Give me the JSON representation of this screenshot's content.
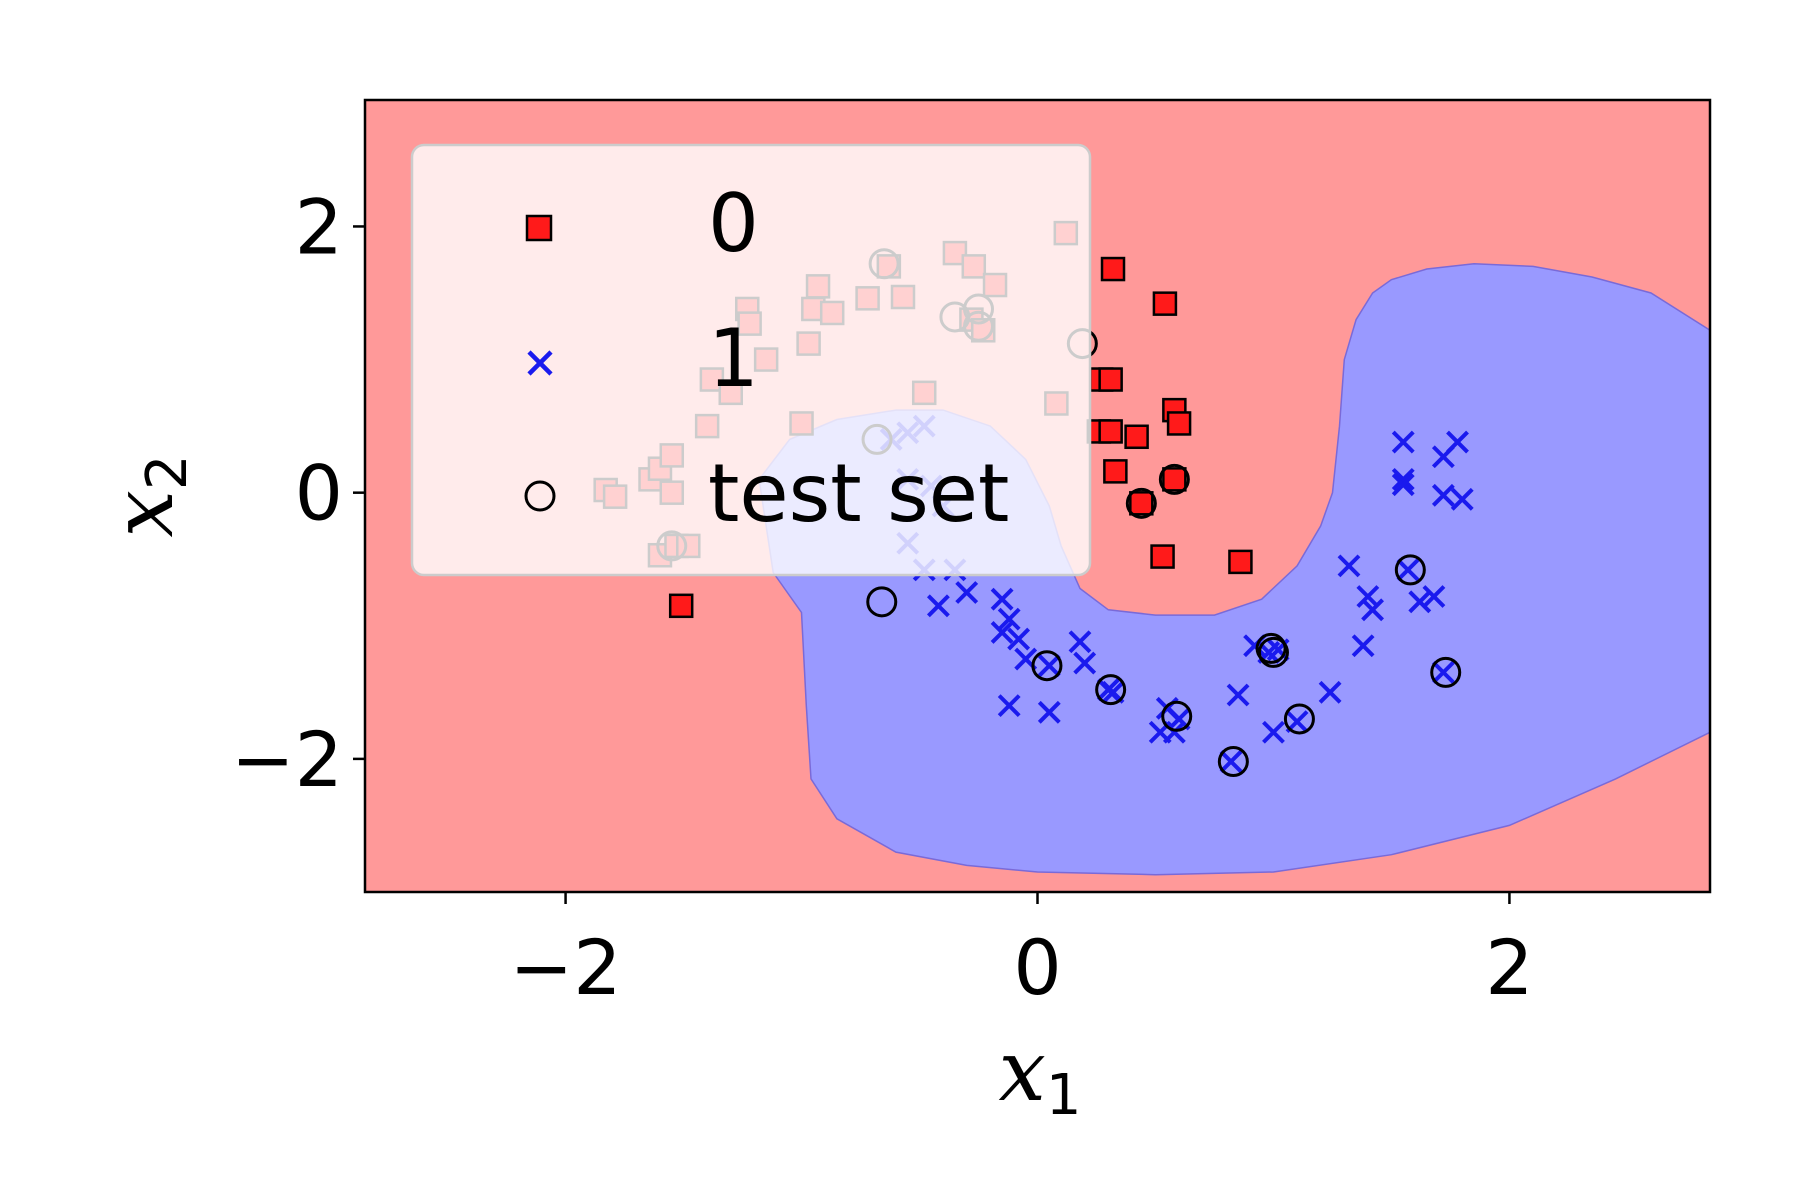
{
  "chart_data": {
    "type": "scatter",
    "title": "",
    "xlabel": "x",
    "xlabel_subscript": "1",
    "ylabel": "x",
    "ylabel_subscript": "2",
    "xlim": [
      -2.85,
      2.85
    ],
    "ylim": [
      -3.0,
      2.95
    ],
    "x_ticks": [
      -2,
      0,
      2
    ],
    "y_ticks": [
      -2,
      0,
      2
    ],
    "x_tick_labels": [
      "−2",
      "0",
      "2"
    ],
    "y_tick_labels": [
      "−2",
      "0",
      "2"
    ],
    "grid": false,
    "legend_position": "top-left",
    "colors": {
      "class0_region": "#ff9999",
      "class1_region": "#9999ff",
      "class0_marker": "#ff1a1a",
      "class1_marker": "#1a1aee",
      "test_marker": "#000000"
    },
    "decision_region_class1_boundary": [
      [
        -1.18,
        0.1
      ],
      [
        -1.12,
        -0.6
      ],
      [
        -1.0,
        -0.9
      ],
      [
        -0.98,
        -1.6
      ],
      [
        -0.96,
        -2.15
      ],
      [
        -0.85,
        -2.45
      ],
      [
        -0.6,
        -2.7
      ],
      [
        -0.3,
        -2.8
      ],
      [
        0.0,
        -2.85
      ],
      [
        0.5,
        -2.87
      ],
      [
        1.0,
        -2.85
      ],
      [
        1.5,
        -2.72
      ],
      [
        2.0,
        -2.5
      ],
      [
        2.45,
        -2.15
      ],
      [
        2.85,
        -1.8
      ],
      [
        2.85,
        1.22
      ],
      [
        2.6,
        1.5
      ],
      [
        2.35,
        1.62
      ],
      [
        2.1,
        1.7
      ],
      [
        1.85,
        1.72
      ],
      [
        1.65,
        1.68
      ],
      [
        1.5,
        1.6
      ],
      [
        1.42,
        1.5
      ],
      [
        1.35,
        1.3
      ],
      [
        1.3,
        1.0
      ],
      [
        1.28,
        0.5
      ],
      [
        1.25,
        0.0
      ],
      [
        1.2,
        -0.25
      ],
      [
        1.1,
        -0.55
      ],
      [
        0.95,
        -0.8
      ],
      [
        0.75,
        -0.92
      ],
      [
        0.5,
        -0.92
      ],
      [
        0.3,
        -0.88
      ],
      [
        0.18,
        -0.72
      ],
      [
        0.1,
        -0.4
      ],
      [
        0.05,
        -0.1
      ],
      [
        -0.05,
        0.25
      ],
      [
        -0.2,
        0.5
      ],
      [
        -0.4,
        0.62
      ],
      [
        -0.6,
        0.62
      ],
      [
        -0.85,
        0.55
      ],
      [
        -1.05,
        0.4
      ]
    ],
    "series": [
      {
        "name": "0",
        "marker": "square",
        "points": [
          [
            -1.83,
            0.02
          ],
          [
            -1.79,
            -0.03
          ],
          [
            -1.64,
            0.1
          ],
          [
            -1.6,
            0.18
          ],
          [
            -1.55,
            0.28
          ],
          [
            -1.55,
            0.0
          ],
          [
            -1.6,
            -0.47
          ],
          [
            -1.53,
            -0.4
          ],
          [
            -1.48,
            -0.4
          ],
          [
            -1.51,
            -0.85
          ],
          [
            -1.4,
            0.5
          ],
          [
            -1.38,
            0.85
          ],
          [
            -1.3,
            0.75
          ],
          [
            -1.23,
            1.38
          ],
          [
            -1.22,
            1.27
          ],
          [
            -1.15,
            1.0
          ],
          [
            -1.0,
            0.52
          ],
          [
            -0.97,
            1.12
          ],
          [
            -0.95,
            1.38
          ],
          [
            -0.93,
            1.55
          ],
          [
            -0.87,
            1.35
          ],
          [
            -0.72,
            1.46
          ],
          [
            -0.63,
            1.7
          ],
          [
            -0.57,
            1.47
          ],
          [
            -0.48,
            0.75
          ],
          [
            -0.35,
            1.8
          ],
          [
            -0.27,
            1.7
          ],
          [
            -0.18,
            1.56
          ],
          [
            -0.28,
            1.3
          ],
          [
            -0.23,
            1.22
          ],
          [
            0.08,
            0.67
          ],
          [
            0.12,
            1.95
          ],
          [
            0.27,
            0.85
          ],
          [
            0.31,
            0.85
          ],
          [
            0.26,
            0.46
          ],
          [
            0.31,
            0.46
          ],
          [
            0.33,
            0.16
          ],
          [
            0.32,
            1.68
          ],
          [
            0.42,
            0.42
          ],
          [
            0.53,
            -0.48
          ],
          [
            0.54,
            1.42
          ],
          [
            0.58,
            0.62
          ],
          [
            0.6,
            0.52
          ],
          [
            0.58,
            0.1
          ],
          [
            0.86,
            -0.52
          ],
          [
            0.44,
            -0.08
          ]
        ]
      },
      {
        "name": "1",
        "marker": "x",
        "points": [
          [
            -0.62,
            0.4
          ],
          [
            -0.55,
            0.45
          ],
          [
            -0.48,
            0.5
          ],
          [
            -0.55,
            0.1
          ],
          [
            -0.45,
            0.05
          ],
          [
            -0.4,
            -0.1
          ],
          [
            -0.55,
            -0.38
          ],
          [
            -0.48,
            -0.58
          ],
          [
            -0.35,
            -0.58
          ],
          [
            -0.42,
            -0.85
          ],
          [
            -0.3,
            -0.75
          ],
          [
            -0.15,
            -0.8
          ],
          [
            -0.12,
            -0.95
          ],
          [
            -0.15,
            -1.05
          ],
          [
            -0.08,
            -1.1
          ],
          [
            -0.05,
            -1.25
          ],
          [
            0.05,
            -1.3
          ],
          [
            0.18,
            -1.12
          ],
          [
            0.2,
            -1.28
          ],
          [
            0.3,
            -1.48
          ],
          [
            0.32,
            -1.5
          ],
          [
            -0.12,
            -1.6
          ],
          [
            0.05,
            -1.65
          ],
          [
            0.55,
            -1.62
          ],
          [
            0.52,
            -1.8
          ],
          [
            0.58,
            -1.8
          ],
          [
            0.6,
            -1.7
          ],
          [
            0.82,
            -2.02
          ],
          [
            0.85,
            -1.52
          ],
          [
            0.92,
            -1.15
          ],
          [
            0.98,
            -1.2
          ],
          [
            1.02,
            -1.18
          ],
          [
            1.0,
            -1.8
          ],
          [
            1.1,
            -1.72
          ],
          [
            1.24,
            -1.5
          ],
          [
            1.32,
            -0.55
          ],
          [
            1.4,
            -0.78
          ],
          [
            1.42,
            -0.88
          ],
          [
            1.38,
            -1.15
          ],
          [
            1.55,
            0.38
          ],
          [
            1.55,
            0.1
          ],
          [
            1.55,
            0.06
          ],
          [
            1.57,
            -0.58
          ],
          [
            1.62,
            -0.82
          ],
          [
            1.68,
            -0.78
          ],
          [
            1.72,
            0.27
          ],
          [
            1.78,
            0.38
          ],
          [
            1.72,
            -0.02
          ],
          [
            1.8,
            -0.05
          ],
          [
            1.72,
            -1.35
          ]
        ]
      },
      {
        "name": "test set",
        "marker": "circle",
        "points": [
          [
            -0.65,
            1.72
          ],
          [
            -0.35,
            1.32
          ],
          [
            -0.25,
            1.38
          ],
          [
            -0.25,
            1.25
          ],
          [
            0.19,
            1.12
          ],
          [
            -0.68,
            0.4
          ],
          [
            -1.55,
            -0.4
          ],
          [
            0.44,
            -0.08
          ],
          [
            0.58,
            0.1
          ],
          [
            -0.66,
            -0.82
          ],
          [
            0.04,
            -1.3
          ],
          [
            0.31,
            -1.48
          ],
          [
            0.59,
            -1.68
          ],
          [
            0.83,
            -2.02
          ],
          [
            0.99,
            -1.17
          ],
          [
            1.0,
            -1.2
          ],
          [
            1.11,
            -1.7
          ],
          [
            1.58,
            -0.58
          ],
          [
            1.73,
            -1.35
          ]
        ]
      }
    ]
  }
}
